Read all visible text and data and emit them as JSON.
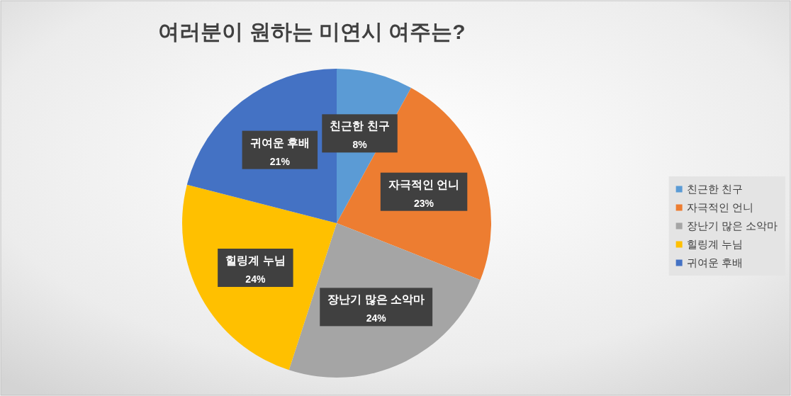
{
  "chart_data": {
    "type": "pie",
    "title": "여러분이 원하는 미연시 여주는?",
    "categories": [
      "친근한 친구",
      "자극적인 언니",
      "장난기 많은 소악마",
      "힐링계 누님",
      "귀여운 후배"
    ],
    "values": [
      8,
      23,
      24,
      24,
      21
    ],
    "colors": [
      "#5b9bd5",
      "#ed7d31",
      "#a5a5a5",
      "#ffc000",
      "#4472c4"
    ],
    "value_labels": [
      "8%",
      "23%",
      "24%",
      "24%",
      "21%"
    ],
    "legend": "right"
  }
}
